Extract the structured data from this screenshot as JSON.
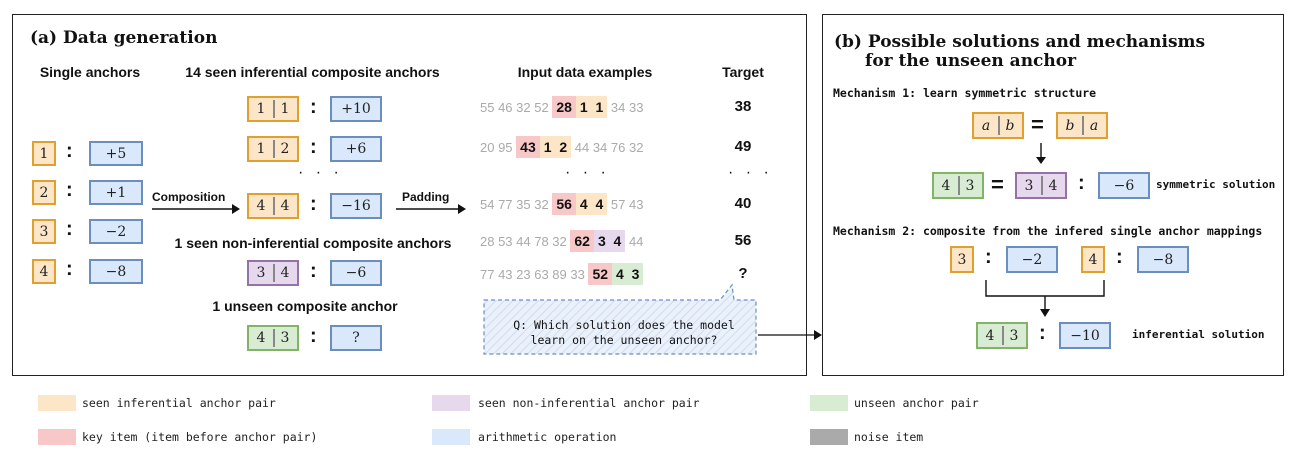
{
  "panel_a": {
    "title": "(a) Data generation",
    "headers": {
      "single": "Single anchors",
      "seen_inf": "14 seen inferential composite anchors",
      "input": "Input data examples",
      "target": "Target"
    },
    "single_anchors": [
      {
        "key": "1",
        "op": "+5"
      },
      {
        "key": "2",
        "op": "+1"
      },
      {
        "key": "3",
        "op": "−2"
      },
      {
        "key": "4",
        "op": "−8"
      }
    ],
    "composite_anchors": [
      {
        "a": "1",
        "b": "1",
        "op": "+10"
      },
      {
        "a": "1",
        "b": "2",
        "op": "+6"
      },
      {
        "a": "4",
        "b": "4",
        "op": "−16"
      }
    ],
    "non_inf_label": "1 seen non-inferential composite anchors",
    "non_inf_anchor": {
      "a": "3",
      "b": "4",
      "op": "−6"
    },
    "unseen_label": "1 unseen composite anchor",
    "unseen_anchor": {
      "a": "4",
      "b": "3",
      "op": "?"
    },
    "composition_label": "Composition",
    "padding_label": "Padding",
    "ellipsis": "· · ·",
    "examples": [
      {
        "pre": "55 46 32 52",
        "key": "28",
        "a": "1",
        "b": "1",
        "post": "34 33",
        "kind": "or",
        "target": "38"
      },
      {
        "pre": "20 95",
        "key": "43",
        "a": "1",
        "b": "2",
        "post": "44 34 76 32",
        "kind": "or",
        "target": "49"
      },
      {
        "pre": "54 77 35 32",
        "key": "56",
        "a": "4",
        "b": "4",
        "post": "57 43",
        "kind": "or",
        "target": "40"
      },
      {
        "pre": "28 53 44 78 32",
        "key": "62",
        "a": "3",
        "b": "4",
        "post": "44",
        "kind": "pu",
        "target": "56"
      },
      {
        "pre": "77 43 23 63 89 33",
        "key": "52",
        "a": "4",
        "b": "3",
        "post": "",
        "kind": "gr",
        "target": "?"
      }
    ],
    "question": "Q: Which solution does the model learn on the unseen anchor?"
  },
  "panel_b": {
    "title_line1": "(b) Possible solutions and mechanisms",
    "title_line2": "for the unseen anchor",
    "mech1_label": "Mechanism 1: learn symmetric structure",
    "sym_top": {
      "a": "a",
      "b": "b",
      "c": "b",
      "d": "a"
    },
    "sym_bottom": {
      "a": "4",
      "b": "3",
      "c": "3",
      "d": "4",
      "op": "−6"
    },
    "sym_solution": "symmetric solution",
    "mech2_label": "Mechanism 2: composite from the infered single anchor mappings",
    "m2_single": [
      {
        "key": "3",
        "op": "−2"
      },
      {
        "key": "4",
        "op": "−8"
      }
    ],
    "m2_result": {
      "a": "4",
      "b": "3",
      "op": "−10"
    },
    "inf_solution": "inferential solution"
  },
  "legend": [
    {
      "label": "seen inferential anchor pair",
      "color": "#fde6c8"
    },
    {
      "label": "seen non-inferential anchor pair",
      "color": "#e6d9ee"
    },
    {
      "label": "unseen anchor pair",
      "color": "#d7ecd3"
    },
    {
      "label": "key item (item before anchor pair)",
      "color": "#f8c8c8"
    },
    {
      "label": "arithmetic operation",
      "color": "#dae8fb"
    },
    {
      "label": "noise item",
      "color": "#aaaaaa"
    }
  ]
}
